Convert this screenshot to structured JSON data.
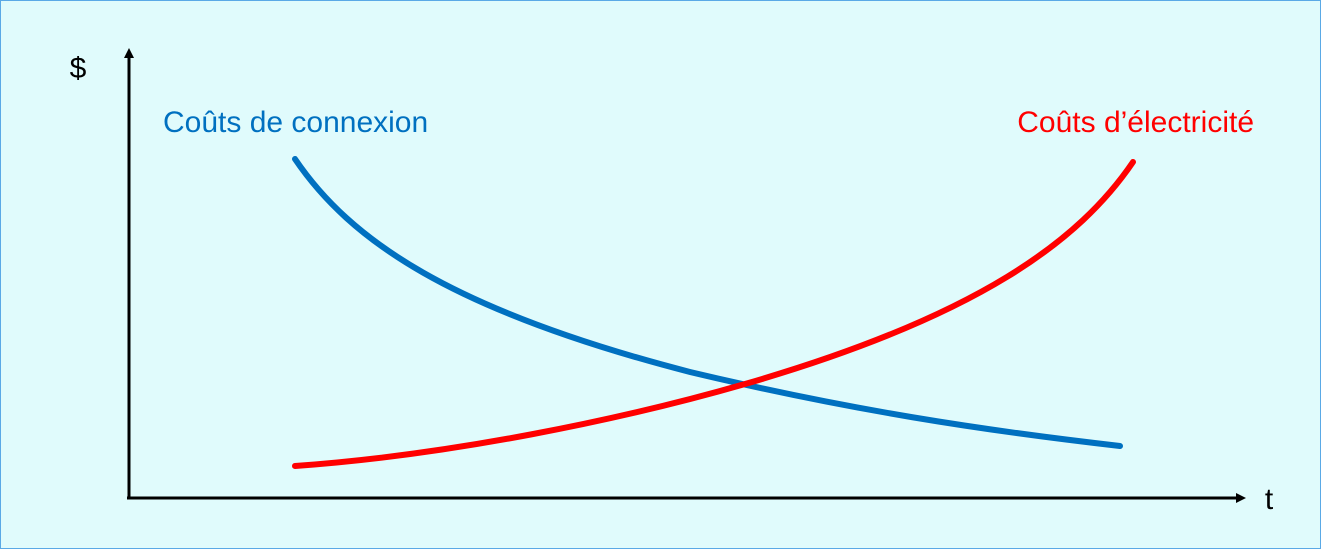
{
  "chart_data": {
    "type": "line",
    "ylabel": "$",
    "xlabel": "t",
    "grid": false,
    "legend": "none",
    "axis_ticks": false,
    "series": [
      {
        "name": "Coûts de connexion",
        "color": "#0070c0",
        "trend": "decreasing"
      },
      {
        "name": "Coûts d’électricité",
        "color": "#ff0000",
        "trend": "increasing"
      }
    ],
    "annotations": [
      "curves intersect near the middle of the time axis"
    ]
  }
}
